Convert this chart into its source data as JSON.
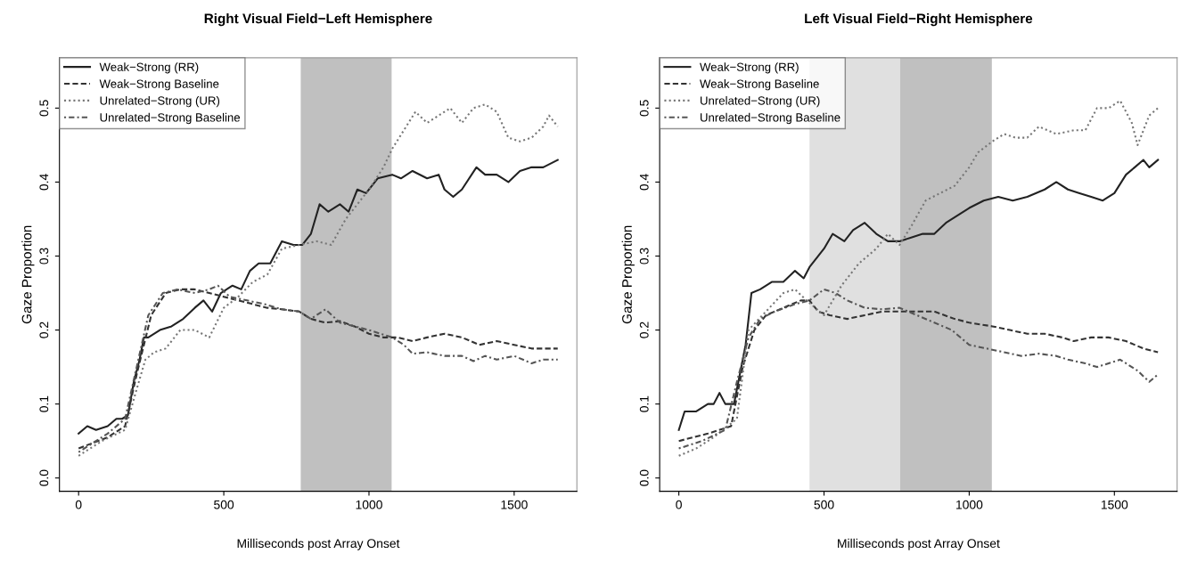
{
  "chart_data": [
    {
      "type": "line",
      "title": "Right Visual Field−Left Hemisphere",
      "xlabel": "Milliseconds post Array Onset",
      "ylabel": "Gaze Proportion",
      "xlim": [
        -66,
        1716
      ],
      "ylim": [
        -0.018,
        0.568
      ],
      "xticks": [
        0,
        500,
        1000,
        1500
      ],
      "yticks": [
        {
          "value": 0,
          "label": "0.0"
        },
        0.1,
        0.2,
        0.3,
        0.4,
        0.5
      ],
      "grid": false,
      "legend": "top left",
      "bands": [
        {
          "axis": "x",
          "from": 765,
          "to": 1078,
          "color": "#c0c0c0"
        }
      ],
      "series": [
        {
          "name": "Weak−Strong (RR)",
          "color": "#222222",
          "line_style": "solid",
          "x": [
            0,
            30,
            60,
            100,
            130,
            150,
            170,
            190,
            210,
            225,
            240,
            280,
            320,
            360,
            400,
            430,
            460,
            490,
            530,
            560,
            590,
            620,
            660,
            700,
            740,
            770,
            800,
            830,
            860,
            900,
            930,
            960,
            990,
            1030,
            1080,
            1110,
            1150,
            1200,
            1240,
            1260,
            1290,
            1320,
            1370,
            1400,
            1440,
            1480,
            1520,
            1560,
            1600,
            1650
          ],
          "values": [
            0.06,
            0.07,
            0.065,
            0.07,
            0.08,
            0.08,
            0.085,
            0.13,
            0.16,
            0.19,
            0.19,
            0.2,
            0.205,
            0.215,
            0.23,
            0.24,
            0.225,
            0.25,
            0.26,
            0.255,
            0.28,
            0.29,
            0.29,
            0.32,
            0.315,
            0.315,
            0.33,
            0.37,
            0.36,
            0.37,
            0.36,
            0.39,
            0.385,
            0.405,
            0.41,
            0.405,
            0.415,
            0.405,
            0.41,
            0.39,
            0.38,
            0.39,
            0.42,
            0.41,
            0.41,
            0.4,
            0.415,
            0.42,
            0.42,
            0.43
          ]
        },
        {
          "name": "Weak−Strong Baseline",
          "color": "#333333",
          "line_style": "dashed",
          "x": [
            0,
            100,
            160,
            200,
            250,
            300,
            350,
            400,
            450,
            500,
            550,
            600,
            650,
            700,
            760,
            800,
            850,
            900,
            950,
            1000,
            1050,
            1100,
            1150,
            1200,
            1260,
            1320,
            1380,
            1440,
            1500,
            1560,
            1650
          ],
          "values": [
            0.04,
            0.055,
            0.07,
            0.14,
            0.22,
            0.25,
            0.255,
            0.255,
            0.25,
            0.245,
            0.24,
            0.235,
            0.23,
            0.228,
            0.225,
            0.215,
            0.21,
            0.212,
            0.205,
            0.195,
            0.19,
            0.19,
            0.185,
            0.19,
            0.195,
            0.19,
            0.18,
            0.185,
            0.18,
            0.175,
            0.175
          ]
        },
        {
          "name": "Unrelated−Strong (UR)",
          "color": "#777777",
          "line_style": "dotted",
          "x": [
            0,
            80,
            160,
            200,
            230,
            260,
            300,
            350,
            400,
            450,
            500,
            550,
            600,
            650,
            700,
            760,
            820,
            870,
            920,
            960,
            1000,
            1050,
            1080,
            1120,
            1160,
            1200,
            1240,
            1280,
            1320,
            1360,
            1400,
            1440,
            1480,
            1520,
            1560,
            1600,
            1620,
            1650
          ],
          "values": [
            0.03,
            0.05,
            0.065,
            0.12,
            0.16,
            0.17,
            0.175,
            0.2,
            0.2,
            0.19,
            0.23,
            0.245,
            0.265,
            0.275,
            0.31,
            0.315,
            0.32,
            0.315,
            0.35,
            0.37,
            0.39,
            0.42,
            0.445,
            0.47,
            0.495,
            0.48,
            0.49,
            0.5,
            0.48,
            0.5,
            0.505,
            0.495,
            0.46,
            0.455,
            0.46,
            0.475,
            0.49,
            0.475
          ]
        },
        {
          "name": "Unrelated−Strong Baseline",
          "color": "#555555",
          "line_style": "dashdot",
          "x": [
            0,
            100,
            160,
            200,
            240,
            290,
            340,
            400,
            450,
            480,
            520,
            580,
            640,
            700,
            760,
            800,
            850,
            900,
            950,
            1000,
            1080,
            1120,
            1150,
            1200,
            1260,
            1320,
            1360,
            1400,
            1440,
            1500,
            1560,
            1600,
            1650
          ],
          "values": [
            0.035,
            0.06,
            0.08,
            0.15,
            0.22,
            0.25,
            0.255,
            0.25,
            0.255,
            0.26,
            0.245,
            0.24,
            0.235,
            0.228,
            0.225,
            0.215,
            0.228,
            0.21,
            0.205,
            0.2,
            0.19,
            0.18,
            0.168,
            0.17,
            0.165,
            0.165,
            0.158,
            0.165,
            0.16,
            0.165,
            0.155,
            0.16,
            0.16
          ]
        }
      ]
    },
    {
      "type": "line",
      "title": "Left Visual Field−Right Hemisphere",
      "xlabel": "Milliseconds post Array Onset",
      "ylabel": "Gaze Proportion",
      "xlim": [
        -66,
        1716
      ],
      "ylim": [
        -0.018,
        0.568
      ],
      "xticks": [
        0,
        500,
        1000,
        1500
      ],
      "yticks": [
        {
          "value": 0,
          "label": "0.0"
        },
        0.1,
        0.2,
        0.3,
        0.4,
        0.5
      ],
      "grid": false,
      "legend": "top left",
      "bands": [
        {
          "axis": "x",
          "from": 450,
          "to": 762,
          "color": "#e0e0e0"
        },
        {
          "axis": "x",
          "from": 762,
          "to": 1078,
          "color": "#c0c0c0"
        }
      ],
      "series": [
        {
          "name": "Weak−Strong (RR)",
          "color": "#222222",
          "line_style": "solid",
          "x": [
            0,
            20,
            60,
            100,
            120,
            140,
            160,
            190,
            200,
            230,
            250,
            280,
            320,
            360,
            400,
            430,
            450,
            500,
            530,
            570,
            600,
            640,
            680,
            720,
            760,
            800,
            840,
            880,
            920,
            960,
            1000,
            1050,
            1100,
            1150,
            1200,
            1260,
            1300,
            1340,
            1380,
            1420,
            1460,
            1500,
            1540,
            1570,
            1600,
            1620,
            1650
          ],
          "values": [
            0.065,
            0.09,
            0.09,
            0.1,
            0.1,
            0.115,
            0.1,
            0.1,
            0.12,
            0.18,
            0.25,
            0.255,
            0.265,
            0.265,
            0.28,
            0.27,
            0.285,
            0.31,
            0.33,
            0.32,
            0.335,
            0.345,
            0.33,
            0.32,
            0.32,
            0.325,
            0.33,
            0.33,
            0.345,
            0.355,
            0.365,
            0.375,
            0.38,
            0.375,
            0.38,
            0.39,
            0.4,
            0.39,
            0.385,
            0.38,
            0.375,
            0.385,
            0.41,
            0.42,
            0.43,
            0.42,
            0.43
          ]
        },
        {
          "name": "Weak−Strong Baseline",
          "color": "#333333",
          "line_style": "dashed",
          "x": [
            0,
            100,
            180,
            220,
            260,
            300,
            360,
            420,
            450,
            480,
            520,
            580,
            640,
            700,
            760,
            820,
            880,
            950,
            1000,
            1080,
            1140,
            1200,
            1260,
            1320,
            1360,
            1420,
            1480,
            1540,
            1600,
            1650
          ],
          "values": [
            0.05,
            0.06,
            0.07,
            0.15,
            0.2,
            0.22,
            0.23,
            0.24,
            0.24,
            0.225,
            0.22,
            0.215,
            0.22,
            0.225,
            0.225,
            0.225,
            0.225,
            0.215,
            0.21,
            0.205,
            0.2,
            0.195,
            0.195,
            0.19,
            0.185,
            0.19,
            0.19,
            0.185,
            0.175,
            0.17
          ]
        },
        {
          "name": "Unrelated−Strong (UR)",
          "color": "#777777",
          "line_style": "dotted",
          "x": [
            0,
            60,
            120,
            200,
            240,
            300,
            360,
            400,
            440,
            500,
            560,
            620,
            680,
            720,
            760,
            800,
            850,
            900,
            950,
            1000,
            1030,
            1080,
            1120,
            1160,
            1200,
            1240,
            1300,
            1360,
            1400,
            1440,
            1480,
            1520,
            1560,
            1580,
            1620,
            1650
          ],
          "values": [
            0.03,
            0.04,
            0.055,
            0.08,
            0.2,
            0.225,
            0.25,
            0.255,
            0.24,
            0.22,
            0.26,
            0.29,
            0.31,
            0.33,
            0.315,
            0.34,
            0.375,
            0.385,
            0.395,
            0.42,
            0.44,
            0.455,
            0.465,
            0.46,
            0.46,
            0.475,
            0.465,
            0.47,
            0.47,
            0.5,
            0.5,
            0.51,
            0.48,
            0.45,
            0.49,
            0.5
          ]
        },
        {
          "name": "Unrelated−Strong Baseline",
          "color": "#555555",
          "line_style": "dashdot",
          "x": [
            0,
            80,
            160,
            200,
            240,
            280,
            330,
            400,
            450,
            500,
            540,
            580,
            640,
            700,
            760,
            820,
            880,
            940,
            1000,
            1060,
            1120,
            1180,
            1240,
            1300,
            1340,
            1400,
            1440,
            1480,
            1520,
            1580,
            1620,
            1650
          ],
          "values": [
            0.04,
            0.05,
            0.065,
            0.13,
            0.19,
            0.215,
            0.225,
            0.235,
            0.24,
            0.255,
            0.25,
            0.24,
            0.23,
            0.228,
            0.23,
            0.22,
            0.21,
            0.2,
            0.18,
            0.175,
            0.17,
            0.165,
            0.168,
            0.165,
            0.16,
            0.155,
            0.15,
            0.155,
            0.16,
            0.145,
            0.13,
            0.14
          ]
        }
      ]
    }
  ]
}
